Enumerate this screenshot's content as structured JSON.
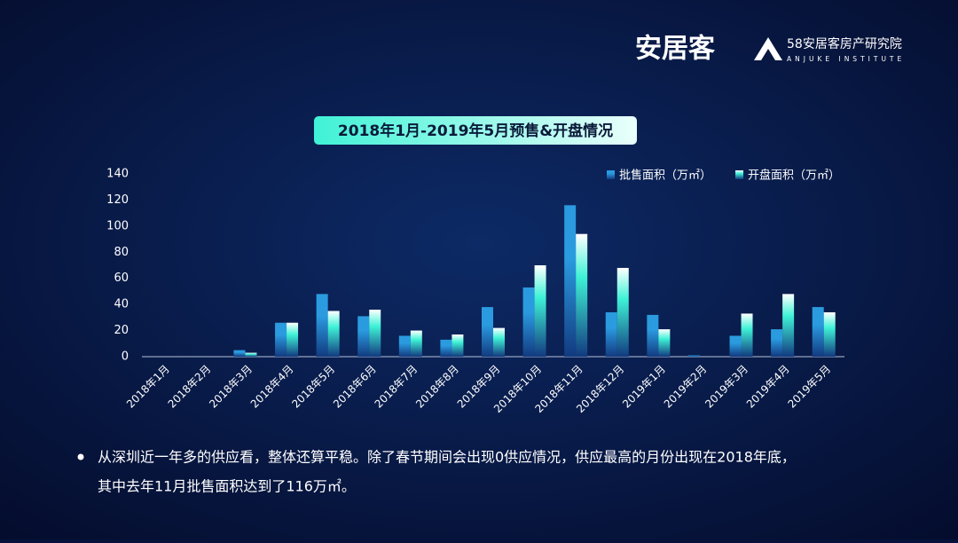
{
  "header": {
    "logo": "安居客",
    "institute": "58安居客房产研究院",
    "institute_en": "ANJUKE INSTITUTE"
  },
  "chart_data": {
    "type": "bar",
    "title": "2018年1月-2019年5月预售&开盘情况",
    "categories": [
      "2018年1月",
      "2018年2月",
      "2018年3月",
      "2018年4月",
      "2018年5月",
      "2018年6月",
      "2018年7月",
      "2018年8月",
      "2018年9月",
      "2018年10月",
      "2018年11月",
      "2018年12月",
      "2019年1月",
      "2019年2月",
      "2019年3月",
      "2019年4月",
      "2019年5月"
    ],
    "series": [
      {
        "name": "批售面积（万㎡）",
        "color": "#2b9be0",
        "values": [
          0,
          0,
          5,
          26,
          48,
          31,
          16,
          13,
          38,
          53,
          116,
          34,
          32,
          1,
          16,
          21,
          38
        ]
      },
      {
        "name": "开盘面积（万㎡）",
        "color": "#3ff2d6",
        "values": [
          0,
          0,
          3,
          26,
          35,
          36,
          20,
          17,
          22,
          70,
          94,
          68,
          21,
          0,
          33,
          48,
          34
        ]
      }
    ],
    "ylim": [
      0,
      140
    ],
    "yticks": [
      0,
      20,
      40,
      60,
      80,
      100,
      120,
      140
    ],
    "grid": false,
    "legend": "top-right"
  },
  "notes": [
    "从深圳近一年多的供应看，整体还算平稳。除了春节期间会出现0供应情况，供应最高的月份出现在2018年底，",
    "其中去年11月批售面积达到了116万㎡。"
  ]
}
